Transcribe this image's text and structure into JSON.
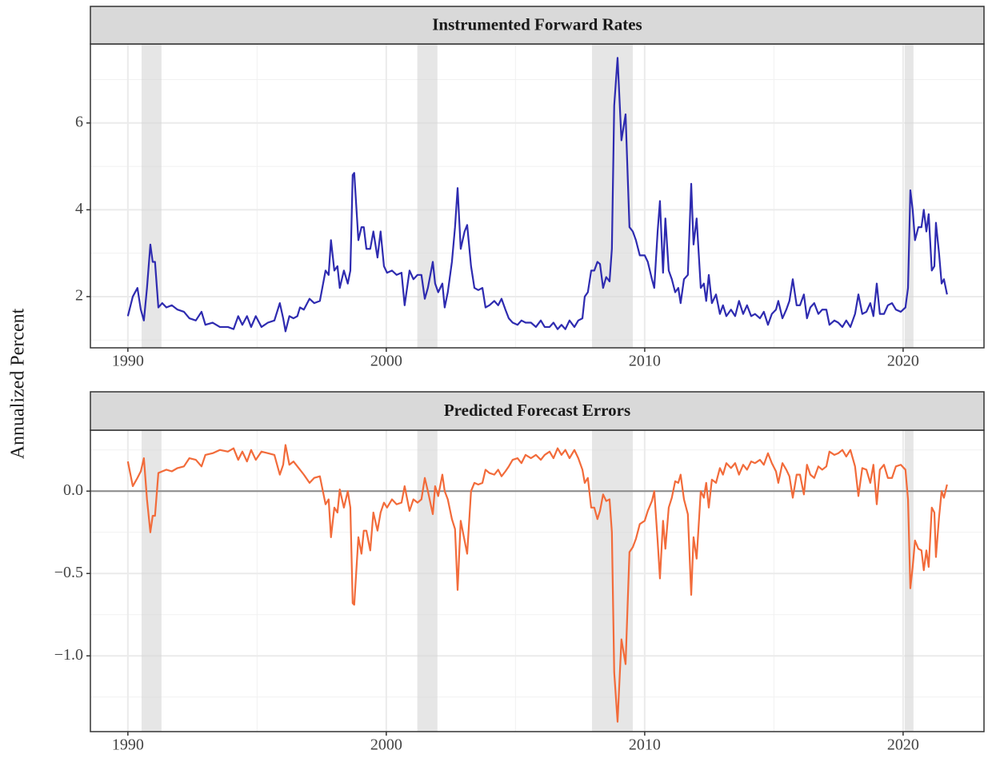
{
  "y_label": "Annualized Percent",
  "chart_data": [
    {
      "type": "line",
      "title": "Instrumented Forward Rates",
      "color": "#2e2bb0",
      "grid": true,
      "xlim": [
        1988.55,
        2023.13
      ],
      "xticks": [
        1990,
        2000,
        2010,
        2020
      ],
      "minor_xticks": [
        1995,
        2005,
        2015
      ],
      "ylim": [
        0.82,
        7.82
      ],
      "yticks": [
        2,
        4,
        6
      ],
      "minor_yticks": [
        1,
        3,
        5,
        7
      ],
      "shaded_regions": [
        [
          1990.53,
          1991.3
        ],
        [
          2001.2,
          2001.98
        ],
        [
          2007.96,
          2009.54
        ],
        [
          2020.06,
          2020.4
        ]
      ],
      "x": [
        1990.0,
        1990.19,
        1990.37,
        1990.5,
        1990.62,
        1990.74,
        1990.87,
        1990.96,
        1991.05,
        1991.18,
        1991.33,
        1991.49,
        1991.7,
        1991.92,
        1992.17,
        1992.38,
        1992.63,
        1992.85,
        1993.0,
        1993.28,
        1993.56,
        1993.87,
        1994.09,
        1994.27,
        1994.43,
        1994.61,
        1994.77,
        1994.95,
        1995.17,
        1995.42,
        1995.67,
        1995.88,
        1996.01,
        1996.1,
        1996.25,
        1996.41,
        1996.56,
        1996.66,
        1996.81,
        1997.03,
        1997.21,
        1997.43,
        1997.65,
        1997.77,
        1997.86,
        1997.99,
        1998.11,
        1998.2,
        1998.36,
        1998.51,
        1998.61,
        1998.7,
        1998.76,
        1998.92,
        1999.04,
        1999.13,
        1999.23,
        1999.38,
        1999.5,
        1999.66,
        1999.78,
        1999.91,
        2000.03,
        2000.22,
        2000.4,
        2000.59,
        2000.71,
        2000.9,
        2001.05,
        2001.21,
        2001.36,
        2001.49,
        2001.61,
        2001.8,
        2001.89,
        2002.01,
        2002.17,
        2002.26,
        2002.38,
        2002.54,
        2002.66,
        2002.76,
        2002.88,
        2003.03,
        2003.13,
        2003.28,
        2003.41,
        2003.56,
        2003.72,
        2003.84,
        2003.99,
        2004.18,
        2004.33,
        2004.46,
        2004.61,
        2004.74,
        2004.89,
        2005.08,
        2005.23,
        2005.39,
        2005.6,
        2005.79,
        2005.98,
        2006.13,
        2006.32,
        2006.47,
        2006.63,
        2006.78,
        2006.93,
        2007.09,
        2007.28,
        2007.43,
        2007.59,
        2007.68,
        2007.8,
        2007.93,
        2008.05,
        2008.17,
        2008.27,
        2008.39,
        2008.51,
        2008.64,
        2008.73,
        2008.82,
        2008.95,
        2009.1,
        2009.26,
        2009.41,
        2009.54,
        2009.66,
        2009.81,
        2010.0,
        2010.12,
        2010.28,
        2010.37,
        2010.5,
        2010.59,
        2010.71,
        2010.8,
        2010.93,
        2011.05,
        2011.18,
        2011.3,
        2011.39,
        2011.52,
        2011.67,
        2011.8,
        2011.89,
        2012.01,
        2012.17,
        2012.29,
        2012.38,
        2012.48,
        2012.6,
        2012.76,
        2012.91,
        2013.03,
        2013.16,
        2013.34,
        2013.5,
        2013.65,
        2013.81,
        2013.96,
        2014.12,
        2014.27,
        2014.46,
        2014.61,
        2014.77,
        2014.92,
        2015.08,
        2015.17,
        2015.33,
        2015.48,
        2015.6,
        2015.73,
        2015.88,
        2016.01,
        2016.16,
        2016.28,
        2016.41,
        2016.56,
        2016.72,
        2016.87,
        2017.03,
        2017.15,
        2017.34,
        2017.49,
        2017.65,
        2017.8,
        2017.96,
        2018.14,
        2018.27,
        2018.42,
        2018.58,
        2018.73,
        2018.85,
        2018.98,
        2019.1,
        2019.26,
        2019.41,
        2019.57,
        2019.72,
        2019.91,
        2020.09,
        2020.19,
        2020.28,
        2020.37,
        2020.46,
        2020.59,
        2020.71,
        2020.8,
        2020.9,
        2020.99,
        2021.11,
        2021.21,
        2021.27,
        2021.39,
        2021.49,
        2021.58,
        2021.7
      ],
      "values": [
        1.55,
        2.0,
        2.2,
        1.7,
        1.45,
        2.2,
        3.2,
        2.8,
        2.8,
        1.75,
        1.85,
        1.75,
        1.8,
        1.7,
        1.65,
        1.5,
        1.45,
        1.65,
        1.35,
        1.4,
        1.3,
        1.3,
        1.25,
        1.55,
        1.35,
        1.55,
        1.3,
        1.55,
        1.3,
        1.4,
        1.45,
        1.85,
        1.5,
        1.2,
        1.55,
        1.5,
        1.55,
        1.75,
        1.7,
        1.95,
        1.85,
        1.9,
        2.6,
        2.5,
        3.3,
        2.6,
        2.7,
        2.2,
        2.6,
        2.3,
        2.6,
        4.8,
        4.85,
        3.3,
        3.6,
        3.6,
        3.1,
        3.1,
        3.5,
        2.9,
        3.5,
        2.7,
        2.55,
        2.6,
        2.5,
        2.55,
        1.8,
        2.6,
        2.4,
        2.5,
        2.5,
        1.95,
        2.2,
        2.8,
        2.3,
        2.1,
        2.3,
        1.75,
        2.1,
        2.8,
        3.6,
        4.5,
        3.1,
        3.5,
        3.65,
        2.7,
        2.2,
        2.15,
        2.2,
        1.75,
        1.8,
        1.9,
        1.8,
        1.95,
        1.7,
        1.5,
        1.4,
        1.35,
        1.45,
        1.4,
        1.4,
        1.3,
        1.45,
        1.3,
        1.3,
        1.4,
        1.25,
        1.35,
        1.25,
        1.45,
        1.3,
        1.45,
        1.5,
        2.0,
        2.1,
        2.6,
        2.6,
        2.8,
        2.75,
        2.2,
        2.45,
        2.35,
        3.1,
        6.4,
        7.5,
        5.6,
        6.2,
        3.6,
        3.5,
        3.3,
        2.95,
        2.95,
        2.8,
        2.4,
        2.2,
        3.5,
        4.2,
        2.55,
        3.8,
        2.6,
        2.4,
        2.1,
        2.2,
        1.85,
        2.4,
        2.5,
        4.6,
        3.2,
        3.8,
        2.2,
        2.3,
        1.9,
        2.5,
        1.85,
        2.05,
        1.6,
        1.8,
        1.55,
        1.7,
        1.55,
        1.9,
        1.6,
        1.8,
        1.55,
        1.6,
        1.5,
        1.65,
        1.35,
        1.6,
        1.7,
        1.9,
        1.5,
        1.7,
        1.9,
        2.4,
        1.8,
        1.8,
        2.05,
        1.5,
        1.75,
        1.85,
        1.6,
        1.7,
        1.7,
        1.35,
        1.45,
        1.4,
        1.3,
        1.45,
        1.3,
        1.6,
        2.05,
        1.6,
        1.65,
        1.85,
        1.55,
        2.3,
        1.6,
        1.6,
        1.8,
        1.85,
        1.7,
        1.65,
        1.75,
        2.2,
        4.45,
        4.0,
        3.3,
        3.6,
        3.6,
        4.0,
        3.5,
        3.9,
        2.6,
        2.7,
        3.7,
        3.0,
        2.3,
        2.4,
        2.05
      ]
    },
    {
      "type": "line",
      "title": "Predicted Forecast Errors",
      "color": "#f26b3a",
      "grid": true,
      "hline": 0,
      "xlim": [
        1988.55,
        2023.13
      ],
      "xticks": [
        1990,
        2000,
        2010,
        2020
      ],
      "minor_xticks": [
        1995,
        2005,
        2015
      ],
      "ylim": [
        -1.46,
        0.37
      ],
      "yticks": [
        {
          "value": 0,
          "label": "0.0"
        },
        {
          "value": -0.5,
          "label": "−0.5"
        },
        {
          "value": -1,
          "label": "−1.0"
        }
      ],
      "minor_yticks": [
        0.25,
        -0.25,
        -0.75,
        -1.25
      ],
      "shaded_regions": [
        [
          1990.53,
          1991.3
        ],
        [
          2001.2,
          2001.98
        ],
        [
          2007.96,
          2009.54
        ],
        [
          2020.06,
          2020.4
        ]
      ],
      "x": [
        1990.0,
        1990.19,
        1990.37,
        1990.5,
        1990.62,
        1990.74,
        1990.87,
        1990.96,
        1991.05,
        1991.18,
        1991.33,
        1991.49,
        1991.7,
        1991.92,
        1992.17,
        1992.38,
        1992.63,
        1992.85,
        1993.0,
        1993.28,
        1993.56,
        1993.87,
        1994.09,
        1994.27,
        1994.43,
        1994.61,
        1994.77,
        1994.95,
        1995.17,
        1995.42,
        1995.67,
        1995.88,
        1996.01,
        1996.1,
        1996.25,
        1996.41,
        1996.56,
        1996.66,
        1996.81,
        1997.03,
        1997.21,
        1997.43,
        1997.65,
        1997.77,
        1997.86,
        1997.99,
        1998.11,
        1998.2,
        1998.36,
        1998.51,
        1998.61,
        1998.7,
        1998.76,
        1998.92,
        1999.04,
        1999.13,
        1999.23,
        1999.38,
        1999.5,
        1999.66,
        1999.78,
        1999.91,
        2000.03,
        2000.22,
        2000.4,
        2000.59,
        2000.71,
        2000.9,
        2001.05,
        2001.21,
        2001.36,
        2001.49,
        2001.61,
        2001.8,
        2001.89,
        2002.01,
        2002.17,
        2002.26,
        2002.38,
        2002.54,
        2002.66,
        2002.76,
        2002.88,
        2003.03,
        2003.13,
        2003.28,
        2003.41,
        2003.56,
        2003.72,
        2003.84,
        2003.99,
        2004.18,
        2004.33,
        2004.46,
        2004.61,
        2004.74,
        2004.89,
        2005.08,
        2005.23,
        2005.39,
        2005.6,
        2005.79,
        2005.98,
        2006.13,
        2006.32,
        2006.47,
        2006.63,
        2006.78,
        2006.93,
        2007.09,
        2007.28,
        2007.43,
        2007.59,
        2007.68,
        2007.8,
        2007.93,
        2008.05,
        2008.17,
        2008.27,
        2008.39,
        2008.51,
        2008.64,
        2008.73,
        2008.82,
        2008.95,
        2009.1,
        2009.26,
        2009.41,
        2009.54,
        2009.66,
        2009.81,
        2010.0,
        2010.12,
        2010.28,
        2010.37,
        2010.5,
        2010.59,
        2010.71,
        2010.8,
        2010.93,
        2011.05,
        2011.18,
        2011.3,
        2011.39,
        2011.52,
        2011.67,
        2011.8,
        2011.89,
        2012.01,
        2012.17,
        2012.29,
        2012.38,
        2012.48,
        2012.6,
        2012.76,
        2012.91,
        2013.03,
        2013.16,
        2013.34,
        2013.5,
        2013.65,
        2013.81,
        2013.96,
        2014.12,
        2014.27,
        2014.46,
        2014.61,
        2014.77,
        2014.92,
        2015.08,
        2015.17,
        2015.33,
        2015.48,
        2015.6,
        2015.73,
        2015.88,
        2016.01,
        2016.16,
        2016.28,
        2016.41,
        2016.56,
        2016.72,
        2016.87,
        2017.03,
        2017.15,
        2017.34,
        2017.49,
        2017.65,
        2017.8,
        2017.96,
        2018.14,
        2018.27,
        2018.42,
        2018.58,
        2018.73,
        2018.85,
        2018.98,
        2019.1,
        2019.26,
        2019.41,
        2019.57,
        2019.72,
        2019.91,
        2020.09,
        2020.19,
        2020.28,
        2020.37,
        2020.46,
        2020.59,
        2020.71,
        2020.8,
        2020.9,
        2020.99,
        2021.11,
        2021.21,
        2021.27,
        2021.39,
        2021.49,
        2021.58,
        2021.7
      ],
      "values": [
        0.18,
        0.03,
        0.08,
        0.12,
        0.2,
        -0.05,
        -0.25,
        -0.15,
        -0.15,
        0.11,
        0.12,
        0.13,
        0.12,
        0.14,
        0.15,
        0.2,
        0.19,
        0.15,
        0.22,
        0.23,
        0.25,
        0.24,
        0.26,
        0.19,
        0.24,
        0.18,
        0.25,
        0.19,
        0.24,
        0.23,
        0.22,
        0.1,
        0.16,
        0.28,
        0.16,
        0.18,
        0.15,
        0.13,
        0.1,
        0.05,
        0.08,
        0.09,
        -0.08,
        -0.05,
        -0.28,
        -0.1,
        -0.13,
        0.01,
        -0.1,
        0.0,
        -0.1,
        -0.68,
        -0.69,
        -0.28,
        -0.38,
        -0.24,
        -0.24,
        -0.36,
        -0.13,
        -0.24,
        -0.13,
        -0.07,
        -0.1,
        -0.05,
        -0.08,
        -0.07,
        0.03,
        -0.12,
        -0.05,
        -0.07,
        -0.05,
        0.08,
        0.0,
        -0.14,
        0.03,
        -0.03,
        0.1,
        0.0,
        -0.05,
        -0.17,
        -0.23,
        -0.6,
        -0.18,
        -0.3,
        -0.38,
        0.0,
        0.05,
        0.04,
        0.05,
        0.13,
        0.11,
        0.1,
        0.13,
        0.09,
        0.12,
        0.15,
        0.19,
        0.2,
        0.17,
        0.22,
        0.2,
        0.22,
        0.19,
        0.22,
        0.24,
        0.2,
        0.26,
        0.22,
        0.25,
        0.2,
        0.25,
        0.2,
        0.13,
        0.05,
        0.08,
        -0.1,
        -0.1,
        -0.17,
        -0.12,
        -0.02,
        -0.06,
        -0.05,
        -0.25,
        -1.1,
        -1.4,
        -0.9,
        -1.05,
        -0.37,
        -0.34,
        -0.29,
        -0.2,
        -0.18,
        -0.12,
        -0.06,
        0.0,
        -0.3,
        -0.53,
        -0.18,
        -0.35,
        -0.1,
        -0.04,
        0.06,
        0.05,
        0.1,
        -0.05,
        -0.14,
        -0.63,
        -0.28,
        -0.41,
        0.0,
        -0.04,
        0.05,
        -0.1,
        0.07,
        0.05,
        0.14,
        0.1,
        0.17,
        0.14,
        0.17,
        0.1,
        0.16,
        0.13,
        0.18,
        0.17,
        0.19,
        0.16,
        0.23,
        0.17,
        0.12,
        0.05,
        0.17,
        0.13,
        0.09,
        -0.04,
        0.1,
        0.1,
        -0.02,
        0.16,
        0.1,
        0.08,
        0.15,
        0.13,
        0.15,
        0.24,
        0.22,
        0.23,
        0.25,
        0.21,
        0.25,
        0.15,
        -0.03,
        0.14,
        0.13,
        0.05,
        0.16,
        -0.08,
        0.13,
        0.16,
        0.08,
        0.08,
        0.15,
        0.16,
        0.13,
        -0.05,
        -0.59,
        -0.46,
        -0.3,
        -0.35,
        -0.36,
        -0.48,
        -0.36,
        -0.46,
        -0.1,
        -0.13,
        -0.4,
        -0.16,
        0.0,
        -0.04,
        0.04
      ]
    }
  ]
}
